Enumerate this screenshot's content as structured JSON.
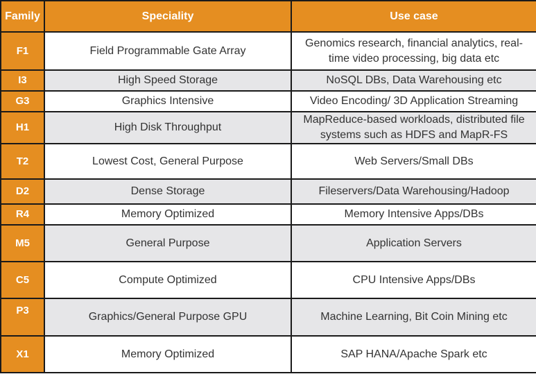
{
  "headers": [
    "Family",
    "Speciality",
    "Use case"
  ],
  "accent_color": "#e58e21",
  "rows": [
    {
      "family": "F1",
      "speciality": "Field Programmable Gate Array",
      "use_case": "Genomics research, financial analytics, real-time video processing, big data etc"
    },
    {
      "family": "I3",
      "speciality": "High Speed Storage",
      "use_case": "NoSQL DBs, Data Warehousing etc"
    },
    {
      "family": "G3",
      "speciality": "Graphics Intensive",
      "use_case": "Video Encoding/ 3D Application Streaming"
    },
    {
      "family": "H1",
      "speciality": "High Disk Throughput",
      "use_case": "MapReduce-based workloads, distributed file systems such as HDFS and MapR-FS"
    },
    {
      "family": "T2",
      "speciality": "Lowest Cost, General Purpose",
      "use_case": "Web Servers/Small DBs"
    },
    {
      "family": "D2",
      "speciality": "Dense Storage",
      "use_case": "Fileservers/Data Warehousing/Hadoop"
    },
    {
      "family": "R4",
      "speciality": "Memory Optimized",
      "use_case": "Memory Intensive Apps/DBs"
    },
    {
      "family": "M5",
      "speciality": "General Purpose",
      "use_case": "Application Servers"
    },
    {
      "family": "C5",
      "speciality": "Compute Optimized",
      "use_case": "CPU Intensive Apps/DBs"
    },
    {
      "family": "P3",
      "speciality": "Graphics/General Purpose GPU",
      "use_case": "Machine Learning, Bit Coin Mining etc"
    },
    {
      "family": "X1",
      "speciality": "Memory Optimized",
      "use_case": "SAP HANA/Apache Spark etc"
    }
  ]
}
